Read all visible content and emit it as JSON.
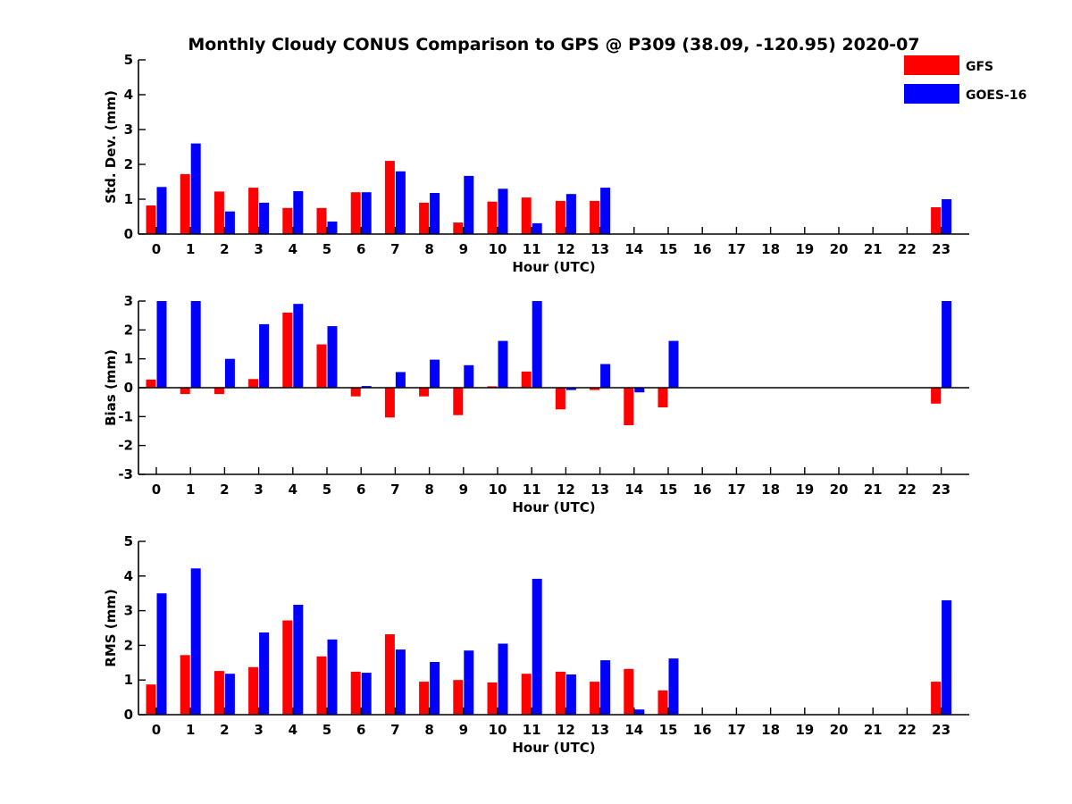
{
  "figure_title": "Monthly Cloudy CONUS Comparison to GPS @ P309 (38.09, -120.95) 2020-07",
  "colors": {
    "GFS": "#ff0000",
    "GOES-16": "#0000ff",
    "axis": "#000000"
  },
  "legend": {
    "placement": "top-right",
    "entries": [
      "GFS",
      "GOES-16"
    ]
  },
  "chart_data": [
    {
      "type": "bar",
      "title": "",
      "xlabel": "Hour (UTC)",
      "ylabel": "Std. Dev. (mm)",
      "ylim": [
        0,
        5
      ],
      "yticks": [
        0,
        1,
        2,
        3,
        4,
        5
      ],
      "categories": [
        "0",
        "1",
        "2",
        "3",
        "4",
        "5",
        "6",
        "7",
        "8",
        "9",
        "10",
        "11",
        "12",
        "13",
        "14",
        "15",
        "16",
        "17",
        "18",
        "19",
        "20",
        "21",
        "22",
        "23"
      ],
      "series": [
        {
          "name": "GFS",
          "values": [
            0.82,
            1.72,
            1.22,
            1.33,
            0.75,
            0.75,
            1.2,
            2.1,
            0.9,
            0.33,
            0.93,
            1.05,
            0.95,
            0.95,
            null,
            null,
            null,
            null,
            null,
            null,
            null,
            null,
            null,
            0.77
          ]
        },
        {
          "name": "GOES-16",
          "values": [
            1.35,
            2.6,
            0.65,
            0.9,
            1.23,
            0.36,
            1.2,
            1.8,
            1.18,
            1.67,
            1.3,
            0.31,
            1.15,
            1.33,
            null,
            null,
            null,
            null,
            null,
            null,
            null,
            null,
            null,
            1.0
          ]
        }
      ]
    },
    {
      "type": "bar",
      "title": "",
      "xlabel": "Hour (UTC)",
      "ylabel": "Bias (mm)",
      "ylim": [
        -3,
        3
      ],
      "yticks": [
        -3,
        -2,
        -1,
        0,
        1,
        2,
        3
      ],
      "categories": [
        "0",
        "1",
        "2",
        "3",
        "4",
        "5",
        "6",
        "7",
        "8",
        "9",
        "10",
        "11",
        "12",
        "13",
        "14",
        "15",
        "16",
        "17",
        "18",
        "19",
        "20",
        "21",
        "22",
        "23"
      ],
      "series": [
        {
          "name": "GFS",
          "values": [
            0.28,
            -0.22,
            -0.22,
            0.3,
            2.6,
            1.5,
            -0.3,
            -1.03,
            -0.3,
            -0.95,
            0.05,
            0.56,
            -0.75,
            -0.08,
            -1.3,
            -0.68,
            null,
            null,
            null,
            null,
            null,
            null,
            null,
            -0.55
          ]
        },
        {
          "name": "GOES-16",
          "values": [
            3.0,
            3.0,
            1.0,
            2.2,
            2.9,
            2.13,
            0.06,
            0.54,
            0.97,
            0.78,
            1.62,
            3.0,
            -0.08,
            0.82,
            -0.16,
            1.62,
            null,
            null,
            null,
            null,
            null,
            null,
            null,
            3.0
          ]
        }
      ]
    },
    {
      "type": "bar",
      "title": "",
      "xlabel": "Hour (UTC)",
      "ylabel": "RMS (mm)",
      "ylim": [
        0,
        5
      ],
      "yticks": [
        0,
        1,
        2,
        3,
        4,
        5
      ],
      "categories": [
        "0",
        "1",
        "2",
        "3",
        "4",
        "5",
        "6",
        "7",
        "8",
        "9",
        "10",
        "11",
        "12",
        "13",
        "14",
        "15",
        "16",
        "17",
        "18",
        "19",
        "20",
        "21",
        "22",
        "23"
      ],
      "series": [
        {
          "name": "GFS",
          "values": [
            0.87,
            1.72,
            1.26,
            1.37,
            2.72,
            1.68,
            1.24,
            2.32,
            0.95,
            1.0,
            0.93,
            1.18,
            1.24,
            0.95,
            1.32,
            0.7,
            null,
            null,
            null,
            null,
            null,
            null,
            null,
            0.95
          ]
        },
        {
          "name": "GOES-16",
          "values": [
            3.5,
            4.22,
            1.18,
            2.37,
            3.17,
            2.17,
            1.21,
            1.88,
            1.52,
            1.85,
            2.05,
            3.92,
            1.16,
            1.57,
            0.15,
            1.62,
            null,
            null,
            null,
            null,
            null,
            null,
            null,
            3.3
          ]
        }
      ]
    }
  ]
}
